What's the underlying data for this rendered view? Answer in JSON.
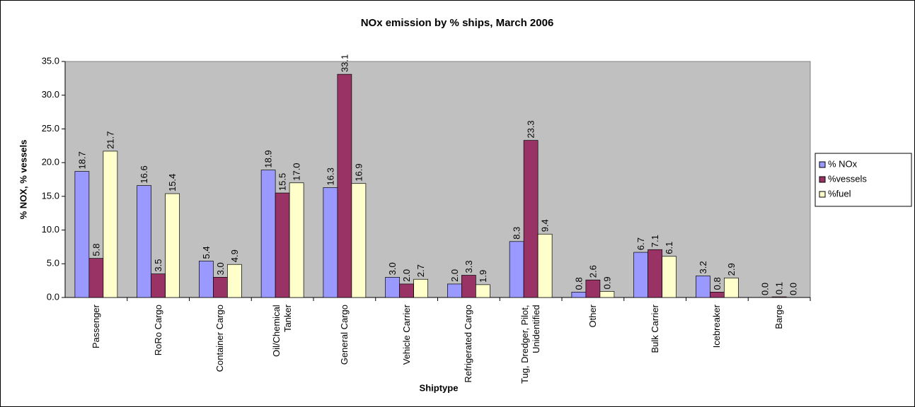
{
  "chart_data": {
    "type": "bar",
    "title": "NOx emission by % ships, March 2006",
    "x_label": "Shiptype",
    "y_label": "% NOX, % vessels",
    "categories": [
      "Passenger",
      "RoRo Cargo",
      "Container Cargo",
      "Oil/Chemical Tanker",
      "General Cargo",
      "Vehicle Carrier",
      "Refrigerated Cargo",
      "Tug, Dredger, Pilot, Unidentified",
      "Other",
      "Bulk Carrier",
      "Icebreaker",
      "Barge"
    ],
    "series": [
      {
        "name": "% NOx",
        "color": "#9999ff",
        "values": [
          18.7,
          16.6,
          5.4,
          18.9,
          16.3,
          3.0,
          2.0,
          8.3,
          0.8,
          6.7,
          3.2,
          0.0
        ],
        "value_labels": [
          "18.7",
          "16.6",
          "5.4",
          "18.9",
          "16.3",
          "3.0",
          "2.0",
          "8.3",
          "0.8",
          "6.7",
          "3.2",
          "0.0"
        ]
      },
      {
        "name": "%vessels",
        "color": "#993366",
        "values": [
          5.8,
          3.5,
          3.0,
          15.5,
          33.1,
          2.0,
          3.3,
          23.3,
          2.6,
          7.1,
          0.8,
          0.1
        ],
        "value_labels": [
          "5.8",
          "3.5",
          "3.0",
          "15.5",
          "33.1",
          "2.0",
          "3.3",
          "23.3",
          "2.6",
          "7.1",
          "0.8",
          "0.1"
        ]
      },
      {
        "name": "%fuel",
        "color": "#ffffcc",
        "values": [
          21.7,
          15.4,
          4.9,
          17.0,
          16.9,
          2.7,
          1.9,
          9.4,
          0.9,
          6.1,
          2.9,
          0.0
        ],
        "value_labels": [
          "21.7",
          "15.4",
          "4.9",
          "17.0",
          "16.9",
          "2.7",
          "1.9",
          "9.4",
          "0.9",
          "6.1",
          "2.9",
          "0.0"
        ]
      }
    ],
    "ylim": [
      0,
      35
    ],
    "yticks": [
      {
        "value": 0,
        "label": "0.0"
      },
      {
        "value": 5,
        "label": "5.0"
      },
      {
        "value": 10,
        "label": "10.0"
      },
      {
        "value": 15,
        "label": "15.0"
      },
      {
        "value": 20,
        "label": "20.0"
      },
      {
        "value": 25,
        "label": "25.0"
      },
      {
        "value": 30,
        "label": "30.0"
      },
      {
        "value": 35,
        "label": "35.0"
      }
    ],
    "grid": false,
    "legend": "right",
    "plot_background": "#c0c0c0"
  }
}
